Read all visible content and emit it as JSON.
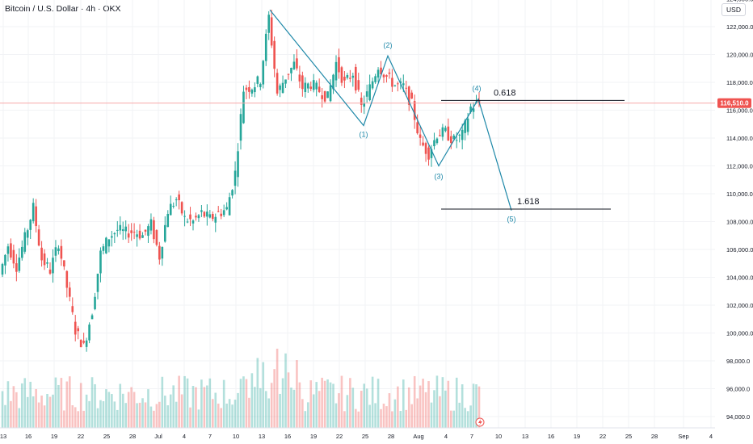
{
  "header": {
    "title": "Bitcoin / U.S. Dollar · 4h · OKX",
    "currency": "USD"
  },
  "colors": {
    "up": "#26a69a",
    "down": "#ef5350",
    "wave": "#1e88a8",
    "price_line": "#f7a8a8",
    "price_tag": "#ef5350"
  },
  "chart_data": {
    "type": "candlestick",
    "symbol": "Bitcoin / U.S. Dollar",
    "interval": "4h",
    "exchange": "OKX",
    "currency": "USD",
    "y_ticks": [
      94000,
      96000,
      98000,
      100000,
      102000,
      104000,
      106000,
      108000,
      110000,
      112000,
      114000,
      116000,
      118000,
      120000,
      122000,
      124000
    ],
    "y_tick_labels": [
      "94,000.0",
      "96,000.0",
      "98,000.0",
      "100,000.0",
      "102,000.0",
      "104,000.0",
      "106,000.0",
      "108,000.0",
      "110,000.0",
      "112,000.0",
      "114,000.0",
      "116,000.0",
      "118,000.0",
      "120,000.0",
      "122,000.0",
      "124,000.0"
    ],
    "ylim": [
      93000,
      125500
    ],
    "x_ticks": [
      "13",
      "16",
      "19",
      "22",
      "25",
      "28",
      "Jul",
      "4",
      "7",
      "10",
      "13",
      "16",
      "19",
      "22",
      "25",
      "28",
      "Aug",
      "4",
      "7",
      "10",
      "13",
      "16",
      "19",
      "22",
      "25",
      "28",
      "Sep",
      "4"
    ],
    "last_price": 116510,
    "last_price_label": "116,510.0",
    "price_path": [
      [
        "13",
        104200
      ],
      [
        "14",
        106300
      ],
      [
        "15",
        104800
      ],
      [
        "16",
        106800
      ],
      [
        "17",
        109000
      ],
      [
        "18",
        105300
      ],
      [
        "19",
        104500
      ],
      [
        "20",
        106500
      ],
      [
        "21",
        103300
      ],
      [
        "22",
        100200
      ],
      [
        "22.5",
        99000
      ],
      [
        "23",
        101600
      ],
      [
        "24",
        105700
      ],
      [
        "25",
        106900
      ],
      [
        "26",
        107400
      ],
      [
        "27",
        107200
      ],
      [
        "28",
        107300
      ],
      [
        "29",
        107000
      ],
      [
        "30",
        107800
      ],
      [
        "Jul",
        105500
      ],
      [
        "2",
        108800
      ],
      [
        "3",
        109600
      ],
      [
        "4",
        108200
      ],
      [
        "5",
        108000
      ],
      [
        "6",
        108600
      ],
      [
        "7",
        108200
      ],
      [
        "8",
        108600
      ],
      [
        "9",
        108900
      ],
      [
        "10",
        111500
      ],
      [
        "11",
        117500
      ],
      [
        "12",
        117700
      ],
      [
        "13",
        118200
      ],
      [
        "14",
        122700
      ],
      [
        "15",
        117200
      ],
      [
        "16",
        118400
      ],
      [
        "17",
        119300
      ],
      [
        "18",
        117600
      ],
      [
        "19",
        117900
      ],
      [
        "20",
        117400
      ],
      [
        "21",
        116900
      ],
      [
        "22",
        119400
      ],
      [
        "23",
        117900
      ],
      [
        "24",
        118700
      ],
      [
        "25",
        116200
      ],
      [
        "26",
        117600
      ],
      [
        "27",
        119200
      ],
      [
        "28",
        118400
      ],
      [
        "29",
        117800
      ],
      [
        "30",
        117700
      ],
      [
        "31",
        116400
      ],
      [
        "Aug",
        113700
      ],
      [
        "2",
        112900
      ],
      [
        "3",
        114300
      ],
      [
        "4",
        114400
      ],
      [
        "5",
        113800
      ],
      [
        "6",
        114200
      ],
      [
        "7",
        116200
      ],
      [
        "8",
        116510
      ]
    ],
    "volume_relative": "bars at bottom, peak near Jul 14–15",
    "annotations": {
      "waves": [
        {
          "label": "(1)",
          "date": "Jul 25",
          "price": 114900
        },
        {
          "label": "(2)",
          "date": "Jul 28",
          "price": 119900
        },
        {
          "label": "(3)",
          "date": "Aug 2",
          "price": 112000
        },
        {
          "label": "(4)",
          "date": "Aug 8",
          "price": 116800
        },
        {
          "label": "(5)",
          "date": "Aug 11",
          "price": 108800
        }
      ],
      "wave_start": {
        "date": "Jul 14",
        "price": 123200
      },
      "fib_levels": [
        {
          "label": "0.618",
          "price": 116700
        },
        {
          "label": "1.618",
          "price": 108900
        }
      ]
    }
  }
}
